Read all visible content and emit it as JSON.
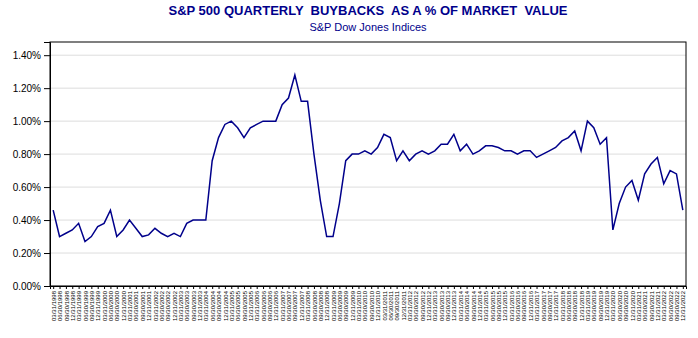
{
  "chart_data": {
    "type": "line",
    "title": "S&P 500 QUARTERLY  BUYBACKS  AS A % OF MARKET  VALUE",
    "subtitle": "S&P Dow Jones Indices",
    "color": "#00008B",
    "categories": [
      "03/31/1998",
      "06/30/1998",
      "09/30/1998",
      "12/31/1998",
      "03/31/1999",
      "06/30/1999",
      "09/30/1999",
      "12/31/1999",
      "03/31/2000",
      "06/30/2000",
      "09/30/2000",
      "12/31/2000",
      "03/31/2001",
      "06/30/2001",
      "09/30/2001",
      "12/31/2001",
      "03/31/2002",
      "06/30/2002",
      "09/30/2002",
      "12/31/2002",
      "03/31/2003",
      "06/30/2003",
      "09/30/2003",
      "12/31/2003",
      "03/31/2004",
      "06/30/2004",
      "09/30/2004",
      "12/31/2004",
      "03/31/2005",
      "06/30/2005",
      "09/30/2005",
      "12/31/2005",
      "03/31/2006",
      "06/30/2006",
      "09/30/2006",
      "12/31/2006",
      "03/31/2007",
      "06/30/2007",
      "09/30/2007",
      "12/31/2007",
      "03/31/2008",
      "06/30/2008",
      "09/30/2008",
      "12/31/2008",
      "03/31/2009",
      "06/30/2009",
      "09/30/2009",
      "12/31/2009",
      "03/31/2010",
      "06/30/2010",
      "09/30/2010",
      "12/31/2010",
      "03/31/2011",
      "06/30/2011",
      "09/30/2011",
      "12/31/2011",
      "03/31/2012",
      "06/30/2012",
      "09/30/2012",
      "12/31/2012",
      "03/31/2013",
      "06/30/2013",
      "09/30/2013",
      "12/31/2013",
      "03/31/2014",
      "06/30/2014",
      "09/30/2014",
      "12/31/2014",
      "03/31/2015",
      "06/30/2015",
      "09/30/2015",
      "12/31/2015",
      "03/31/2016",
      "06/30/2016",
      "09/30/2016",
      "12/31/2016",
      "03/31/2017",
      "06/30/2017",
      "09/30/2017",
      "12/31/2017",
      "03/31/2018",
      "06/30/2018",
      "09/30/2018",
      "12/31/2018",
      "03/31/2019",
      "06/30/2019",
      "09/30/2019",
      "12/31/2019",
      "03/31/2020",
      "06/30/2020",
      "09/30/2020",
      "12/31/2020",
      "03/31/2021",
      "06/30/2021",
      "09/30/2021",
      "12/31/2021",
      "03/31/2022",
      "06/30/2022",
      "09/30/2022",
      "12/31/2022"
    ],
    "values": [
      0.0046,
      0.003,
      0.0032,
      0.0034,
      0.0038,
      0.0027,
      0.003,
      0.0036,
      0.0038,
      0.0046,
      0.003,
      0.0034,
      0.004,
      0.0035,
      0.003,
      0.0031,
      0.0035,
      0.0032,
      0.003,
      0.0032,
      0.003,
      0.0038,
      0.004,
      0.004,
      0.004,
      0.0076,
      0.009,
      0.0098,
      0.01,
      0.0096,
      0.009,
      0.0096,
      0.0098,
      0.01,
      0.01,
      0.01,
      0.011,
      0.0114,
      0.0128,
      0.0112,
      0.0112,
      0.008,
      0.0052,
      0.003,
      0.003,
      0.005,
      0.0076,
      0.008,
      0.008,
      0.0082,
      0.008,
      0.0084,
      0.0092,
      0.009,
      0.0076,
      0.0082,
      0.0076,
      0.008,
      0.0082,
      0.008,
      0.0082,
      0.0086,
      0.0086,
      0.0092,
      0.0082,
      0.0086,
      0.008,
      0.0082,
      0.0085,
      0.0085,
      0.0084,
      0.0082,
      0.0082,
      0.008,
      0.0082,
      0.0082,
      0.0078,
      0.008,
      0.0082,
      0.0084,
      0.0088,
      0.009,
      0.0094,
      0.0082,
      0.01,
      0.0096,
      0.0086,
      0.009,
      0.0034,
      0.005,
      0.006,
      0.0064,
      0.0052,
      0.0068,
      0.0074,
      0.0078,
      0.0062,
      0.007,
      0.0068,
      0.0046
    ],
    "ylim": [
      0.0,
      0.0148
    ],
    "yticks": [
      {
        "value": 0.0,
        "label": "0.00%"
      },
      {
        "value": 0.002,
        "label": "0.20%"
      },
      {
        "value": 0.004,
        "label": "0.40%"
      },
      {
        "value": 0.006,
        "label": "0.60%"
      },
      {
        "value": 0.008,
        "label": "0.80%"
      },
      {
        "value": 0.01,
        "label": "1.00%"
      },
      {
        "value": 0.012,
        "label": "1.20%"
      },
      {
        "value": 0.014,
        "label": "1.40%"
      }
    ],
    "grid": true
  }
}
